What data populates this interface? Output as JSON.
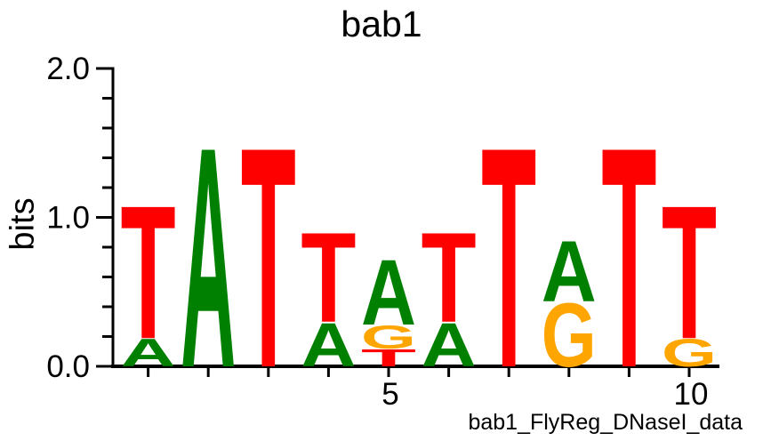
{
  "chart_data": {
    "type": "sequence_logo",
    "title": "bab1",
    "ylabel": "bits",
    "xlabel": "",
    "annotation": "bab1_FlyReg_DNaseI_data",
    "ylim": [
      0,
      2
    ],
    "yticks_major": [
      {
        "value": 0.0,
        "label": "0.0"
      },
      {
        "value": 1.0,
        "label": "1.0"
      },
      {
        "value": 2.0,
        "label": "2.0"
      }
    ],
    "ytick_minor_step": 0.2,
    "xtick_labels": [
      {
        "position": 5,
        "label": "5"
      },
      {
        "position": 10,
        "label": "10"
      }
    ],
    "num_positions": 10,
    "grid": false,
    "legend": false,
    "colors": {
      "A": "#008000",
      "T": "#ff0000",
      "G": "#ffa500"
    },
    "positions": [
      {
        "position": 1,
        "stack": [
          {
            "base": "A",
            "bits": 0.19
          },
          {
            "base": "T",
            "bits": 0.92
          }
        ]
      },
      {
        "position": 2,
        "stack": [
          {
            "base": "A",
            "bits": 1.52
          }
        ]
      },
      {
        "position": 3,
        "stack": [
          {
            "base": "T",
            "bits": 1.52
          }
        ]
      },
      {
        "position": 4,
        "stack": [
          {
            "base": "A",
            "bits": 0.3
          },
          {
            "base": "T",
            "bits": 0.62
          }
        ]
      },
      {
        "position": 5,
        "stack": [
          {
            "base": "T",
            "bits": 0.12
          },
          {
            "base": "G",
            "bits": 0.16
          },
          {
            "base": "A",
            "bits": 0.45
          }
        ]
      },
      {
        "position": 6,
        "stack": [
          {
            "base": "A",
            "bits": 0.3
          },
          {
            "base": "T",
            "bits": 0.62
          }
        ]
      },
      {
        "position": 7,
        "stack": [
          {
            "base": "T",
            "bits": 1.52
          }
        ]
      },
      {
        "position": 8,
        "stack": [
          {
            "base": "G",
            "bits": 0.44
          },
          {
            "base": "A",
            "bits": 0.42
          }
        ]
      },
      {
        "position": 9,
        "stack": [
          {
            "base": "T",
            "bits": 1.52
          }
        ]
      },
      {
        "position": 10,
        "stack": [
          {
            "base": "G",
            "bits": 0.19
          },
          {
            "base": "T",
            "bits": 0.92
          }
        ]
      }
    ]
  }
}
